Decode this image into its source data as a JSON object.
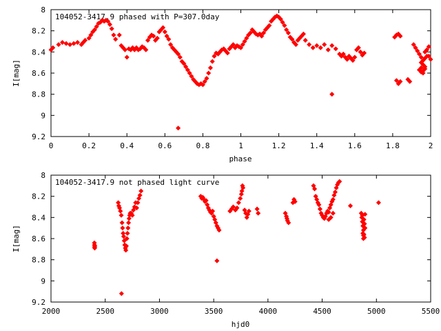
{
  "chart_data": [
    {
      "type": "scatter",
      "title": "104052-3417.9 phased with P=307.0day",
      "xlabel": "phase",
      "ylabel": "I[mag]",
      "xlim": [
        0,
        2
      ],
      "ylim": [
        9.2,
        8.0
      ],
      "y_inverted": true,
      "xticks": [
        "0",
        "0.2",
        "0.4",
        "0.6",
        "0.8",
        "1",
        "1.2",
        "1.4",
        "1.6",
        "1.8",
        "2"
      ],
      "yticks": [
        "8",
        "8.2",
        "8.4",
        "8.6",
        "8.8",
        "9",
        "9.2"
      ],
      "grid": false,
      "marker_color": "#ff0000",
      "points": [
        [
          0.0,
          8.38
        ],
        [
          0.01,
          8.36
        ],
        [
          0.04,
          8.33
        ],
        [
          0.06,
          8.31
        ],
        [
          0.08,
          8.32
        ],
        [
          0.1,
          8.33
        ],
        [
          0.12,
          8.32
        ],
        [
          0.14,
          8.31
        ],
        [
          0.16,
          8.33
        ],
        [
          0.17,
          8.31
        ],
        [
          0.18,
          8.29
        ],
        [
          0.2,
          8.27
        ],
        [
          0.21,
          8.24
        ],
        [
          0.22,
          8.21
        ],
        [
          0.23,
          8.19
        ],
        [
          0.24,
          8.16
        ],
        [
          0.25,
          8.13
        ],
        [
          0.26,
          8.12
        ],
        [
          0.27,
          8.1
        ],
        [
          0.28,
          8.11
        ],
        [
          0.29,
          8.1
        ],
        [
          0.3,
          8.11
        ],
        [
          0.31,
          8.14
        ],
        [
          0.32,
          8.18
        ],
        [
          0.33,
          8.24
        ],
        [
          0.34,
          8.28
        ],
        [
          0.36,
          8.24
        ],
        [
          0.37,
          8.34
        ],
        [
          0.38,
          8.36
        ],
        [
          0.39,
          8.38
        ],
        [
          0.4,
          8.45
        ],
        [
          0.41,
          8.37
        ],
        [
          0.42,
          8.38
        ],
        [
          0.43,
          8.36
        ],
        [
          0.44,
          8.38
        ],
        [
          0.45,
          8.36
        ],
        [
          0.46,
          8.38
        ],
        [
          0.47,
          8.37
        ],
        [
          0.48,
          8.35
        ],
        [
          0.49,
          8.36
        ],
        [
          0.5,
          8.38
        ],
        [
          0.51,
          8.29
        ],
        [
          0.52,
          8.26
        ],
        [
          0.53,
          8.24
        ],
        [
          0.54,
          8.25
        ],
        [
          0.55,
          8.29
        ],
        [
          0.56,
          8.27
        ],
        [
          0.57,
          8.21
        ],
        [
          0.58,
          8.19
        ],
        [
          0.59,
          8.17
        ],
        [
          0.6,
          8.21
        ],
        [
          0.61,
          8.25
        ],
        [
          0.62,
          8.28
        ],
        [
          0.63,
          8.33
        ],
        [
          0.64,
          8.36
        ],
        [
          0.65,
          8.38
        ],
        [
          0.66,
          8.4
        ],
        [
          0.67,
          8.42
        ],
        [
          0.68,
          8.45
        ],
        [
          0.69,
          8.49
        ],
        [
          0.7,
          8.51
        ],
        [
          0.71,
          8.54
        ],
        [
          0.72,
          8.57
        ],
        [
          0.73,
          8.6
        ],
        [
          0.74,
          8.63
        ],
        [
          0.75,
          8.66
        ],
        [
          0.76,
          8.68
        ],
        [
          0.77,
          8.7
        ],
        [
          0.78,
          8.71
        ],
        [
          0.79,
          8.7
        ],
        [
          0.8,
          8.71
        ],
        [
          0.81,
          8.68
        ],
        [
          0.82,
          8.65
        ],
        [
          0.83,
          8.6
        ],
        [
          0.84,
          8.55
        ],
        [
          0.85,
          8.49
        ],
        [
          0.86,
          8.44
        ],
        [
          0.87,
          8.41
        ],
        [
          0.88,
          8.42
        ],
        [
          0.89,
          8.4
        ],
        [
          0.9,
          8.38
        ],
        [
          0.91,
          8.37
        ],
        [
          0.92,
          8.39
        ],
        [
          0.93,
          8.41
        ],
        [
          0.94,
          8.37
        ],
        [
          0.95,
          8.35
        ],
        [
          0.96,
          8.33
        ],
        [
          0.97,
          8.36
        ],
        [
          0.98,
          8.34
        ],
        [
          0.99,
          8.35
        ],
        [
          1.0,
          8.36
        ],
        [
          1.01,
          8.33
        ],
        [
          1.02,
          8.3
        ],
        [
          1.03,
          8.27
        ],
        [
          1.04,
          8.24
        ],
        [
          1.05,
          8.22
        ],
        [
          1.06,
          8.19
        ],
        [
          1.07,
          8.21
        ],
        [
          1.08,
          8.23
        ],
        [
          1.09,
          8.24
        ],
        [
          1.1,
          8.23
        ],
        [
          1.11,
          8.25
        ],
        [
          1.12,
          8.22
        ],
        [
          1.13,
          8.19
        ],
        [
          1.14,
          8.17
        ],
        [
          1.15,
          8.15
        ],
        [
          1.16,
          8.11
        ],
        [
          1.17,
          8.09
        ],
        [
          1.18,
          8.07
        ],
        [
          1.19,
          8.06
        ],
        [
          1.2,
          8.07
        ],
        [
          1.21,
          8.09
        ],
        [
          1.22,
          8.12
        ],
        [
          1.23,
          8.15
        ],
        [
          1.24,
          8.19
        ],
        [
          1.25,
          8.22
        ],
        [
          1.26,
          8.26
        ],
        [
          1.27,
          8.28
        ],
        [
          1.28,
          8.31
        ],
        [
          1.29,
          8.33
        ],
        [
          1.3,
          8.29
        ],
        [
          1.31,
          8.27
        ],
        [
          1.32,
          8.25
        ],
        [
          1.33,
          8.23
        ],
        [
          1.34,
          8.29
        ],
        [
          1.36,
          8.33
        ],
        [
          1.38,
          8.36
        ],
        [
          1.4,
          8.34
        ],
        [
          1.42,
          8.36
        ],
        [
          1.44,
          8.33
        ],
        [
          1.46,
          8.38
        ],
        [
          1.48,
          8.34
        ],
        [
          1.5,
          8.37
        ],
        [
          1.52,
          8.42
        ],
        [
          1.53,
          8.44
        ],
        [
          1.54,
          8.42
        ],
        [
          1.55,
          8.45
        ],
        [
          1.56,
          8.47
        ],
        [
          1.57,
          8.44
        ],
        [
          1.58,
          8.46
        ],
        [
          1.59,
          8.48
        ],
        [
          1.6,
          8.45
        ],
        [
          1.61,
          8.38
        ],
        [
          1.62,
          8.36
        ],
        [
          1.63,
          8.4
        ],
        [
          1.64,
          8.43
        ],
        [
          1.65,
          8.41
        ],
        [
          1.81,
          8.26
        ],
        [
          1.82,
          8.24
        ],
        [
          1.83,
          8.23
        ],
        [
          1.84,
          8.25
        ],
        [
          1.82,
          8.67
        ],
        [
          1.83,
          8.7
        ],
        [
          1.84,
          8.68
        ],
        [
          1.88,
          8.66
        ],
        [
          1.89,
          8.68
        ],
        [
          1.91,
          8.33
        ],
        [
          1.92,
          8.36
        ],
        [
          1.93,
          8.39
        ],
        [
          1.94,
          8.42
        ],
        [
          1.95,
          8.45
        ],
        [
          1.95,
          8.5
        ],
        [
          1.95,
          8.55
        ],
        [
          1.96,
          8.48
        ],
        [
          1.96,
          8.52
        ],
        [
          1.96,
          8.58
        ],
        [
          1.97,
          8.4
        ],
        [
          1.97,
          8.46
        ],
        [
          1.97,
          8.54
        ],
        [
          1.98,
          8.44
        ],
        [
          1.98,
          8.38
        ],
        [
          1.99,
          8.35
        ],
        [
          1.94,
          8.57
        ],
        [
          1.95,
          8.59
        ],
        [
          1.96,
          8.6
        ],
        [
          1.97,
          8.56
        ],
        [
          2.0,
          8.47
        ],
        [
          1.99,
          8.44
        ],
        [
          1.48,
          8.8
        ],
        [
          0.67,
          9.12
        ]
      ]
    },
    {
      "type": "scatter",
      "title": "104052-3417.9 not phased light curve",
      "xlabel": "hjd0",
      "ylabel": "I[mag]",
      "xlim": [
        2000,
        5500
      ],
      "ylim": [
        9.2,
        8.0
      ],
      "y_inverted": true,
      "xticks": [
        "2000",
        "2500",
        "3000",
        "3500",
        "4000",
        "4500",
        "5000",
        "5500"
      ],
      "yticks": [
        "8",
        "8.2",
        "8.4",
        "8.6",
        "8.8",
        "9",
        "9.2"
      ],
      "grid": false,
      "marker_color": "#ff0000",
      "points": [
        [
          2400,
          8.64
        ],
        [
          2401,
          8.66
        ],
        [
          2402,
          8.68
        ],
        [
          2403,
          8.69
        ],
        [
          2404,
          8.67
        ],
        [
          2620,
          8.26
        ],
        [
          2625,
          8.29
        ],
        [
          2632,
          8.31
        ],
        [
          2640,
          8.34
        ],
        [
          2648,
          8.38
        ],
        [
          2655,
          8.45
        ],
        [
          2660,
          8.5
        ],
        [
          2665,
          8.55
        ],
        [
          2670,
          8.58
        ],
        [
          2675,
          8.62
        ],
        [
          2680,
          8.66
        ],
        [
          2685,
          8.69
        ],
        [
          2690,
          8.71
        ],
        [
          2695,
          8.67
        ],
        [
          2700,
          8.6
        ],
        [
          2705,
          8.55
        ],
        [
          2710,
          8.5
        ],
        [
          2715,
          8.45
        ],
        [
          2720,
          8.41
        ],
        [
          2725,
          8.38
        ],
        [
          2730,
          8.36
        ],
        [
          2740,
          8.36
        ],
        [
          2750,
          8.38
        ],
        [
          2760,
          8.33
        ],
        [
          2770,
          8.3
        ],
        [
          2780,
          8.26
        ],
        [
          2790,
          8.31
        ],
        [
          2800,
          8.26
        ],
        [
          2810,
          8.22
        ],
        [
          2820,
          8.19
        ],
        [
          2830,
          8.15
        ],
        [
          2650,
          9.12
        ],
        [
          3380,
          8.2
        ],
        [
          3390,
          8.22
        ],
        [
          3400,
          8.21
        ],
        [
          3410,
          8.23
        ],
        [
          3420,
          8.25
        ],
        [
          3430,
          8.24
        ],
        [
          3440,
          8.28
        ],
        [
          3450,
          8.31
        ],
        [
          3460,
          8.33
        ],
        [
          3470,
          8.35
        ],
        [
          3480,
          8.36
        ],
        [
          3490,
          8.34
        ],
        [
          3500,
          8.39
        ],
        [
          3510,
          8.42
        ],
        [
          3520,
          8.45
        ],
        [
          3530,
          8.48
        ],
        [
          3540,
          8.5
        ],
        [
          3550,
          8.52
        ],
        [
          3530,
          8.81
        ],
        [
          3650,
          8.34
        ],
        [
          3665,
          8.32
        ],
        [
          3680,
          8.3
        ],
        [
          3700,
          8.33
        ],
        [
          3715,
          8.31
        ],
        [
          3730,
          8.26
        ],
        [
          3745,
          8.22
        ],
        [
          3755,
          8.18
        ],
        [
          3760,
          8.15
        ],
        [
          3765,
          8.1
        ],
        [
          3770,
          8.12
        ],
        [
          3785,
          8.33
        ],
        [
          3795,
          8.36
        ],
        [
          3805,
          8.4
        ],
        [
          3815,
          8.37
        ],
        [
          3825,
          8.34
        ],
        [
          3900,
          8.32
        ],
        [
          3910,
          8.36
        ],
        [
          4160,
          8.36
        ],
        [
          4170,
          8.39
        ],
        [
          4180,
          8.43
        ],
        [
          4190,
          8.45
        ],
        [
          4175,
          8.41
        ],
        [
          4230,
          8.26
        ],
        [
          4240,
          8.23
        ],
        [
          4250,
          8.25
        ],
        [
          4420,
          8.1
        ],
        [
          4430,
          8.13
        ],
        [
          4440,
          8.2
        ],
        [
          4450,
          8.23
        ],
        [
          4460,
          8.26
        ],
        [
          4470,
          8.28
        ],
        [
          4480,
          8.32
        ],
        [
          4490,
          8.36
        ],
        [
          4500,
          8.38
        ],
        [
          4510,
          8.4
        ],
        [
          4520,
          8.41
        ],
        [
          4530,
          8.39
        ],
        [
          4540,
          8.36
        ],
        [
          4550,
          8.34
        ],
        [
          4560,
          8.35
        ],
        [
          4570,
          8.31
        ],
        [
          4580,
          8.28
        ],
        [
          4590,
          8.25
        ],
        [
          4600,
          8.23
        ],
        [
          4610,
          8.19
        ],
        [
          4620,
          8.16
        ],
        [
          4630,
          8.12
        ],
        [
          4640,
          8.09
        ],
        [
          4650,
          8.07
        ],
        [
          4660,
          8.06
        ],
        [
          4600,
          8.36
        ],
        [
          4580,
          8.4
        ],
        [
          4560,
          8.42
        ],
        [
          4760,
          8.29
        ],
        [
          4860,
          8.36
        ],
        [
          4865,
          8.4
        ],
        [
          4870,
          8.44
        ],
        [
          4875,
          8.48
        ],
        [
          4880,
          8.52
        ],
        [
          4885,
          8.56
        ],
        [
          4890,
          8.59
        ],
        [
          4870,
          8.38
        ],
        [
          4875,
          8.55
        ],
        [
          4880,
          8.6
        ],
        [
          4885,
          8.42
        ],
        [
          4890,
          8.46
        ],
        [
          4895,
          8.5
        ],
        [
          4895,
          8.37
        ],
        [
          4880,
          8.57
        ],
        [
          5020,
          8.26
        ]
      ]
    }
  ]
}
